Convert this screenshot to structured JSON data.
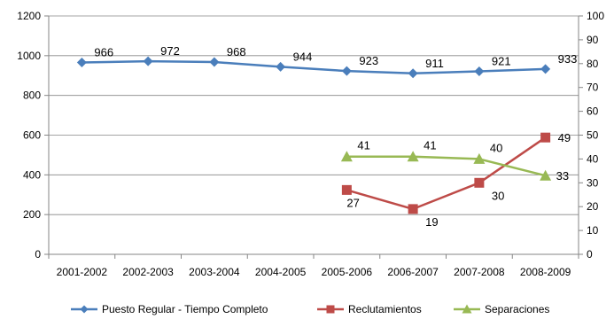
{
  "chart_data": {
    "type": "line",
    "categories": [
      "2001-2002",
      "2002-2003",
      "2003-2004",
      "2004-2005",
      "2005-2006",
      "2006-2007",
      "2007-2008",
      "2008-2009"
    ],
    "y_left": {
      "min": 0,
      "max": 1200,
      "step": 200,
      "ticks": [
        "0",
        "200",
        "400",
        "600",
        "800",
        "1000",
        "1200"
      ]
    },
    "y_right": {
      "min": 0,
      "max": 100,
      "step": 10,
      "ticks": [
        "0",
        "10",
        "20",
        "30",
        "40",
        "50",
        "60",
        "70",
        "80",
        "90",
        "100"
      ]
    },
    "grid": true,
    "legend_position": "bottom",
    "series": [
      {
        "name": "Puesto Regular - Tiempo Completo",
        "axis": "left",
        "color": "#4a7ebb",
        "marker": "diamond",
        "values": [
          966,
          972,
          968,
          944,
          923,
          911,
          921,
          933
        ],
        "labels": [
          "966",
          "972",
          "968",
          "944",
          "923",
          "911",
          "921",
          "933"
        ]
      },
      {
        "name": "Reclutamientos",
        "axis": "right",
        "color": "#be4b48",
        "marker": "square",
        "values": [
          null,
          null,
          null,
          null,
          27,
          19,
          30,
          49
        ],
        "labels": [
          "",
          "",
          "",
          "",
          "27",
          "19",
          "30",
          "49"
        ]
      },
      {
        "name": "Separaciones",
        "axis": "right",
        "color": "#98b954",
        "marker": "triangle",
        "values": [
          null,
          null,
          null,
          null,
          41,
          41,
          40,
          33
        ],
        "labels": [
          "",
          "",
          "",
          "",
          "41",
          "41",
          "40",
          "33"
        ]
      }
    ]
  }
}
